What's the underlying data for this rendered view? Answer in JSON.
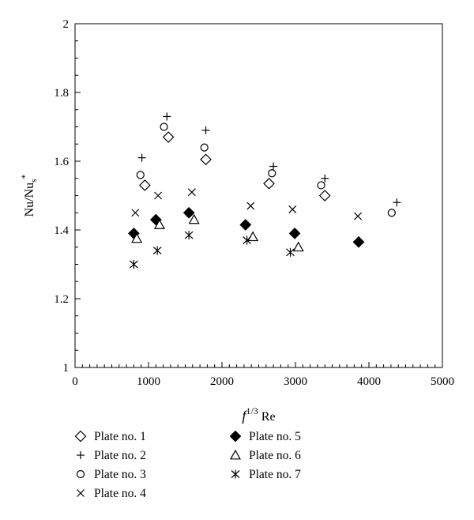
{
  "chart_data": {
    "type": "scatter",
    "xlabel": {
      "base": "f",
      "sup": "1/3",
      "suffix": " Re"
    },
    "ylabel": {
      "base": "Nu/Nu",
      "sub": "s",
      "sup": "*"
    },
    "xlim": [
      0,
      5000
    ],
    "ylim": [
      1,
      2
    ],
    "xticks": [
      0,
      1000,
      2000,
      3000,
      4000,
      5000
    ],
    "yticks": [
      1,
      1.2,
      1.4,
      1.6,
      1.8,
      2
    ],
    "ytick_labels": [
      "1",
      "1.2",
      "1.4",
      "1.6",
      "1.8",
      "2"
    ],
    "grid": false,
    "legend_position": "bottom",
    "series": [
      {
        "name": "Plate no. 1",
        "marker": "diamond-open",
        "x": [
          950,
          1270,
          1780,
          2640,
          3400
        ],
        "y": [
          1.53,
          1.67,
          1.605,
          1.535,
          1.5
        ]
      },
      {
        "name": "Plate no. 2",
        "marker": "plus",
        "x": [
          910,
          1250,
          1780,
          2700,
          3400,
          4380
        ],
        "y": [
          1.61,
          1.73,
          1.69,
          1.585,
          1.55,
          1.48
        ]
      },
      {
        "name": "Plate no. 3",
        "marker": "circle-open",
        "x": [
          890,
          1210,
          1760,
          2680,
          3350,
          4310
        ],
        "y": [
          1.56,
          1.7,
          1.64,
          1.565,
          1.53,
          1.45
        ]
      },
      {
        "name": "Plate no. 4",
        "marker": "x",
        "x": [
          820,
          1130,
          1590,
          2390,
          2960,
          3850
        ],
        "y": [
          1.45,
          1.5,
          1.51,
          1.47,
          1.46,
          1.44
        ]
      },
      {
        "name": "Plate no. 5",
        "marker": "diamond-filled",
        "x": [
          800,
          1100,
          1550,
          2320,
          2990,
          3860
        ],
        "y": [
          1.39,
          1.43,
          1.45,
          1.415,
          1.39,
          1.365
        ]
      },
      {
        "name": "Plate no. 6",
        "marker": "triangle-open",
        "x": [
          840,
          1150,
          1620,
          2420,
          3040
        ],
        "y": [
          1.375,
          1.415,
          1.43,
          1.38,
          1.35
        ]
      },
      {
        "name": "Plate no. 7",
        "marker": "asterisk",
        "x": [
          800,
          1120,
          1550,
          2340,
          2930
        ],
        "y": [
          1.3,
          1.34,
          1.385,
          1.37,
          1.335
        ]
      }
    ]
  }
}
